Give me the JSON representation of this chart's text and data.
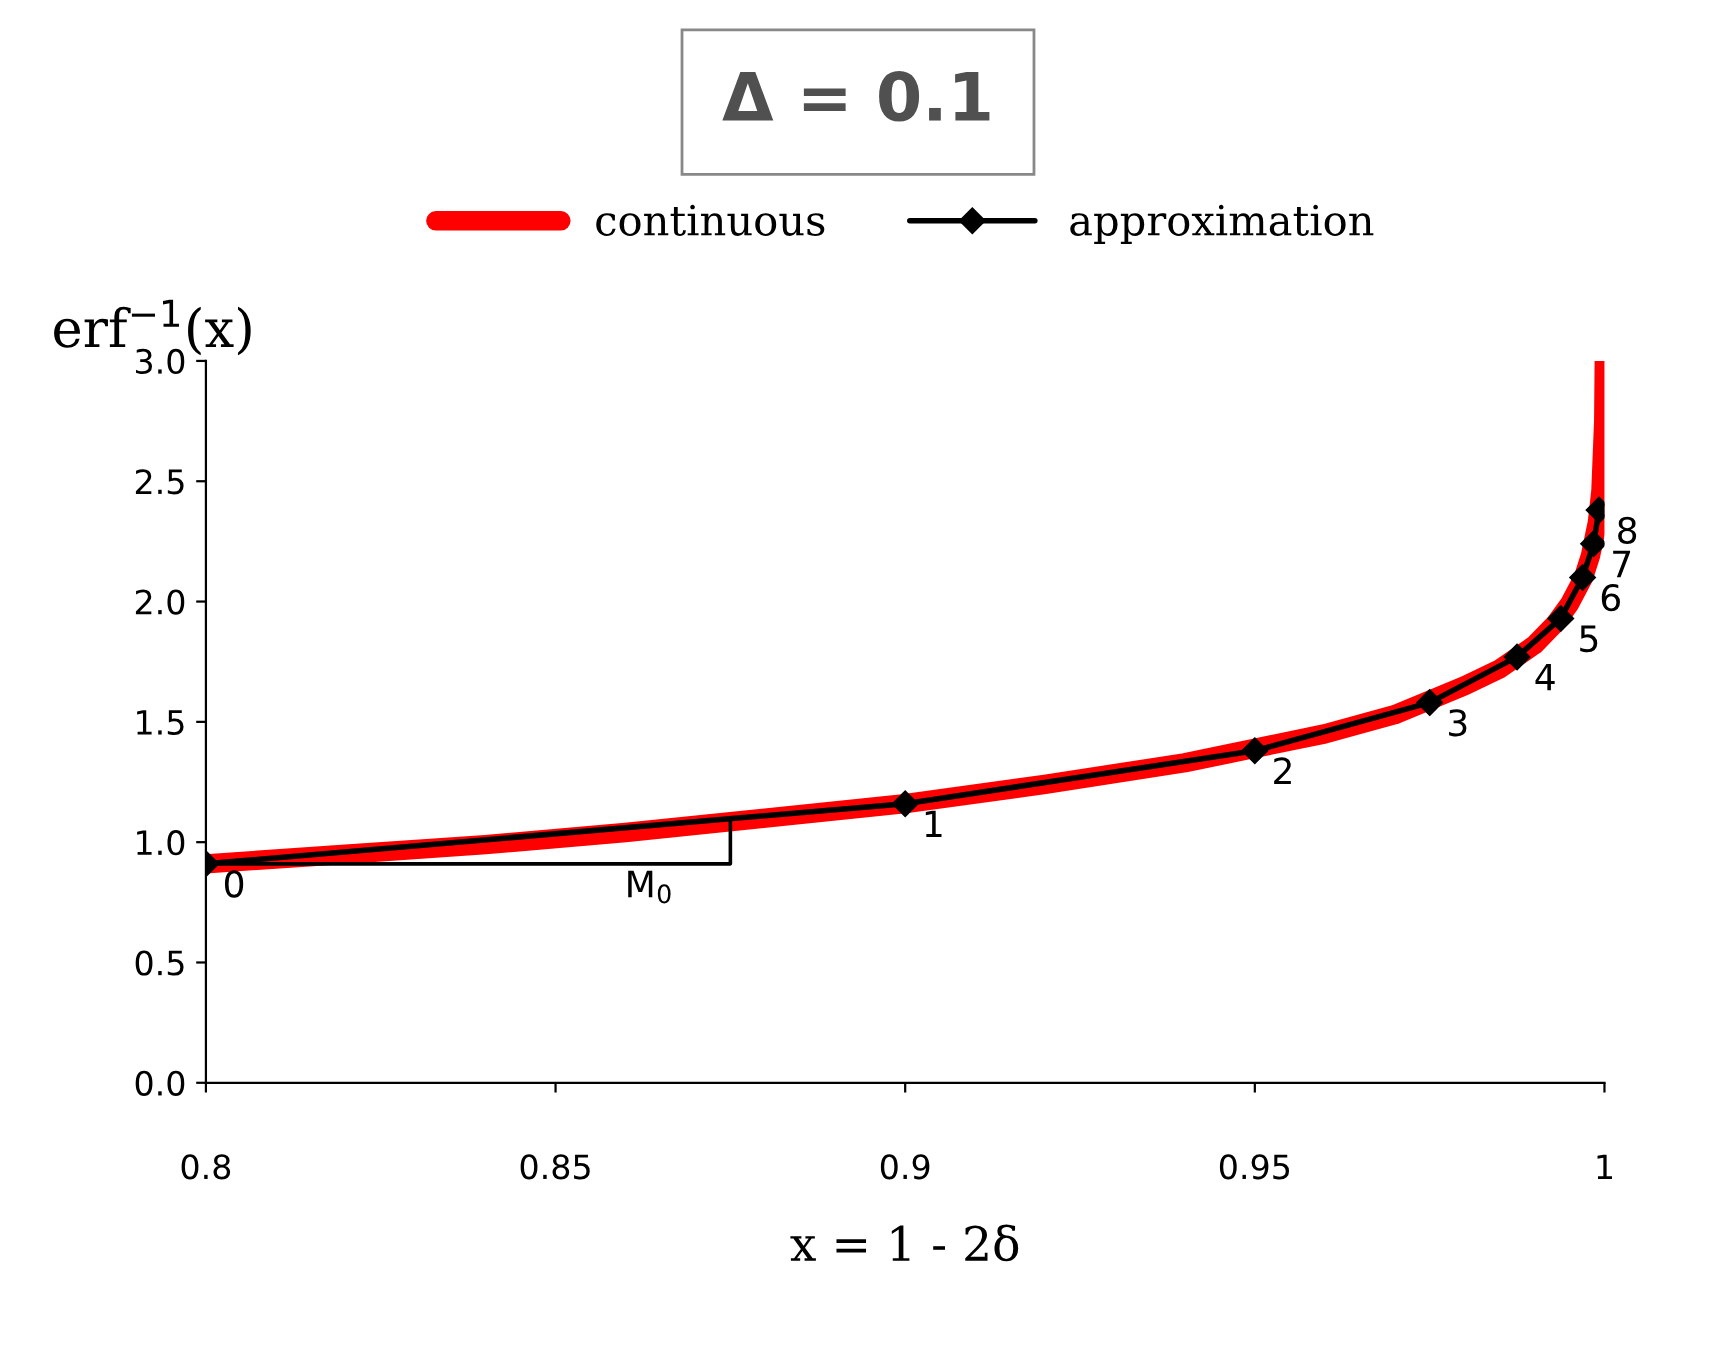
{
  "chart_data": {
    "type": "line",
    "title": "Δ = 0.1",
    "xlabel": "x = 1 - 2δ",
    "ylabel": "erf$^{−1}$(x)",
    "xlim": [
      0.8,
      1.0
    ],
    "xticks": [
      0.8,
      0.85,
      0.9,
      0.95,
      1
    ],
    "ylim": [
      0,
      3.0
    ],
    "yticks": [
      {
        "value": 0,
        "label": "0.0"
      },
      {
        "value": 0.5,
        "label": "0.5"
      },
      {
        "value": 1,
        "label": "1.0"
      },
      {
        "value": 1.5,
        "label": "1.5"
      },
      {
        "value": 2,
        "label": "2.0"
      },
      {
        "value": 2.5,
        "label": "2.5"
      },
      {
        "value": 3,
        "label": "3.0"
      }
    ],
    "grid": false,
    "legend": "top",
    "series": [
      {
        "name": "continuous",
        "color": "#ff0000",
        "marker": "none",
        "x": [
          0.8,
          0.82,
          0.84,
          0.86,
          0.88,
          0.9,
          0.92,
          0.94,
          0.95,
          0.96,
          0.97,
          0.975,
          0.98,
          0.985,
          0.99,
          0.993,
          0.995,
          0.997,
          0.998,
          0.999,
          0.9995,
          0.9999,
          0.99998
        ],
        "values": [
          0.91,
          0.95,
          0.99,
          1.04,
          1.1,
          1.16,
          1.24,
          1.33,
          1.39,
          1.45,
          1.53,
          1.59,
          1.65,
          1.72,
          1.82,
          1.91,
          1.99,
          2.1,
          2.19,
          2.33,
          2.46,
          2.75,
          3.0
        ]
      },
      {
        "name": "approximation",
        "color": "#000000",
        "marker": "diamond",
        "x": [
          0.8,
          0.9,
          0.95,
          0.975,
          0.9875,
          0.99375,
          0.996875,
          0.9984375,
          0.99921875
        ],
        "values": [
          0.91,
          1.16,
          1.38,
          1.58,
          1.77,
          1.93,
          2.1,
          2.24,
          2.38
        ]
      },
      {
        "color": "#000000",
        "marker": "none",
        "x": [
          0.8,
          0.875,
          0.875
        ],
        "values": [
          0.91,
          0.91,
          1.09
        ]
      }
    ],
    "annotations": [
      {
        "text": "0",
        "x": 0.8,
        "y": 0.91
      },
      {
        "text": "1",
        "x": 0.9,
        "y": 1.16
      },
      {
        "text": "2",
        "x": 0.95,
        "y": 1.38
      },
      {
        "text": "3",
        "x": 0.975,
        "y": 1.58
      },
      {
        "text": "4",
        "x": 0.9875,
        "y": 1.77
      },
      {
        "text": "5",
        "x": 0.99375,
        "y": 1.93
      },
      {
        "text": "6",
        "x": 0.996875,
        "y": 2.1
      },
      {
        "text": "7",
        "x": 0.9984375,
        "y": 2.24
      },
      {
        "text": "8",
        "x": 0.99921875,
        "y": 2.38
      },
      {
        "text": "M$_{0}$",
        "x": 0.8575,
        "y": 0.91
      }
    ]
  }
}
